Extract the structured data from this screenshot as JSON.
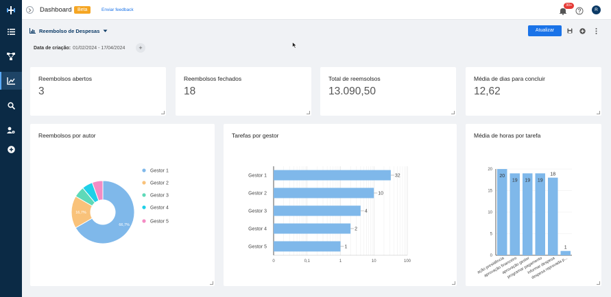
{
  "topbar": {
    "title": "Dashboard",
    "beta": "Beta",
    "feedback": "Enviar feedback",
    "notifications": "30+",
    "avatar": "R"
  },
  "sidebar": {
    "items": [
      {
        "icon": "list-icon"
      },
      {
        "icon": "flow-icon"
      },
      {
        "icon": "chart-icon",
        "active": true
      },
      {
        "icon": "search-icon"
      },
      {
        "icon": "user-settings-icon"
      },
      {
        "icon": "add-icon"
      }
    ]
  },
  "report": {
    "title": "Reembolso de Despesas",
    "update_label": "Atualizar"
  },
  "filter": {
    "label": "Data de criação:",
    "value": "01/02/2024 - 17/04/2024",
    "add": "+"
  },
  "kpis": [
    {
      "title": "Reembolsos abertos",
      "value": "3"
    },
    {
      "title": "Reembolsos fechados",
      "value": "18"
    },
    {
      "title": "Total de reemsolsos",
      "value": "13.090,50"
    },
    {
      "title": "Média de dias para concluir",
      "value": "12,62"
    }
  ],
  "charts": {
    "pie_title": "Reembolsos por autor",
    "hbar_title": "Tarefas por gestor",
    "vbar_title": "Média de horas por tarefa"
  },
  "colors": {
    "gestor1": "#7fb8ea",
    "gestor2": "#f9c27a",
    "gestor3": "#5ed9b8",
    "gestor4": "#1fd0e8",
    "gestor5": "#f48cc4",
    "bar": "#7fb8ea",
    "accent": "#1a73e8"
  },
  "chart_data": [
    {
      "type": "pie",
      "title": "Reembolsos por autor",
      "categories": [
        "Gestor 1",
        "Gestor 2",
        "Gestor 3",
        "Gestor 4",
        "Gestor 5"
      ],
      "values": [
        66.7,
        16.7,
        5.6,
        5.5,
        5.5
      ],
      "data_labels": [
        "66,7%",
        "16,7%",
        "",
        "",
        ""
      ],
      "legend": "right"
    },
    {
      "type": "bar",
      "orientation": "horizontal",
      "title": "Tarefas por gestor",
      "categories": [
        "Gestor 1",
        "Gestor 2",
        "Gestor 3",
        "Gestor 4",
        "Gestor 5"
      ],
      "values": [
        32,
        10,
        4,
        2,
        1
      ],
      "x_scale": "log",
      "x_ticks": [
        "0",
        "0,1",
        "1",
        "10",
        "100"
      ]
    },
    {
      "type": "bar",
      "title": "Média de horas por tarefa",
      "categories": [
        "ação presidência",
        "aprovação financeiro",
        "aprovação gestor",
        "programar pagamento",
        "informar despesa",
        "despesa reprovada p..."
      ],
      "values": [
        20,
        19,
        19,
        19,
        18,
        1
      ],
      "ylim": [
        0,
        20
      ],
      "y_ticks": [
        "0",
        "5",
        "10",
        "15",
        "20"
      ]
    }
  ]
}
